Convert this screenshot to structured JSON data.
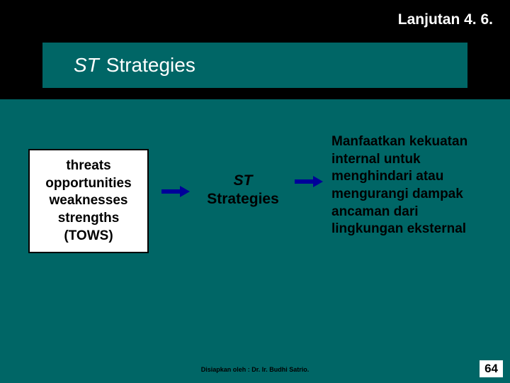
{
  "header": {
    "text": "Lanjutan 4. 6."
  },
  "title": {
    "italic": "ST",
    "rest": "Strategies"
  },
  "tows": {
    "line1": "threats",
    "line2": "opportunities",
    "line3": "weaknesses",
    "line4": "strengths",
    "line5": "(TOWS)"
  },
  "center": {
    "italic": "ST",
    "rest": "Strategies"
  },
  "description": {
    "text": "Manfaatkan kekuatan internal untuk menghindari atau mengurangi dampak ancaman dari lingkungan eksternal"
  },
  "footer": {
    "credit": "Disiapkan oleh : Dr. Ir. Budhi Satrio.",
    "page": "64"
  },
  "colors": {
    "bg": "#006666",
    "black": "#000000",
    "white": "#ffffff",
    "arrow": "#000099"
  }
}
